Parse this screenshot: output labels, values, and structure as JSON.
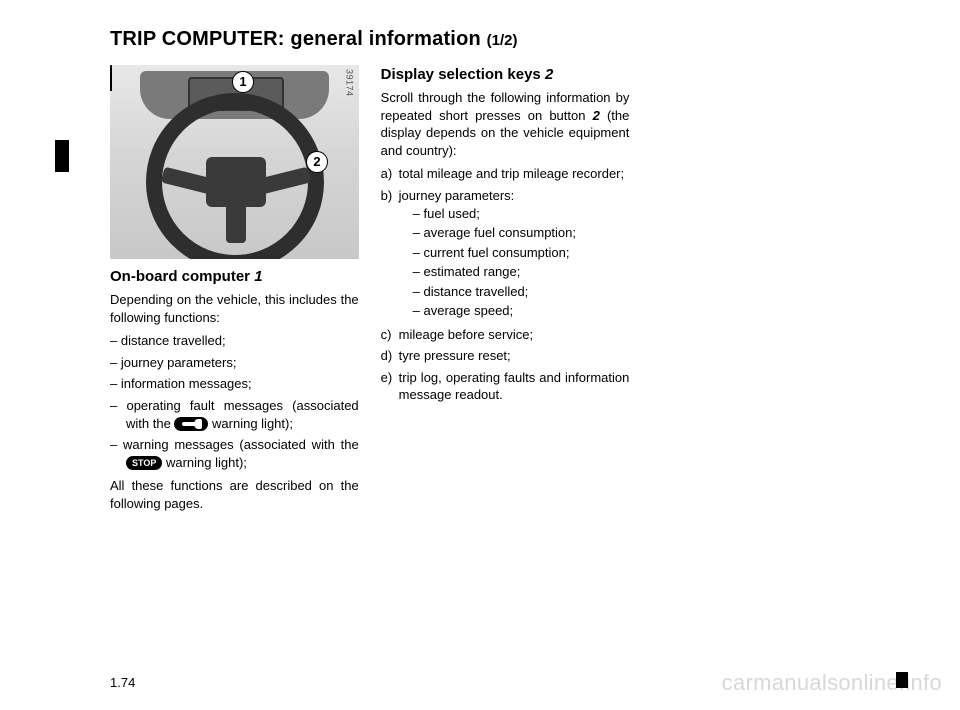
{
  "title": {
    "main": "TRIP COMPUTER:  general information ",
    "part": "(1/2)"
  },
  "figure": {
    "image_id": "39174",
    "callouts": {
      "one": "1",
      "two": "2"
    }
  },
  "left": {
    "heading": "On-board computer",
    "heading_ref": "1",
    "intro": "Depending on the vehicle, this includes the following functions:",
    "items": [
      "distance travelled;",
      "journey parameters;",
      "information messages;"
    ],
    "item_fault_pre": "operating fault messages (associated with the ",
    "item_fault_post": " warning light);",
    "item_warn_pre": "warning messages (associated with the ",
    "stop_label": "STOP",
    "item_warn_post": " warning light);",
    "outro": "All these functions are described on the following pages."
  },
  "mid": {
    "heading": "Display selection keys",
    "heading_ref": "2",
    "intro_pre": "Scroll through the following information by repeated short presses on button ",
    "intro_ref": "2",
    "intro_post": " (the display depends on the vehicle equipment and country):",
    "a": "total mileage and trip mileage recorder;",
    "b_label": "journey parameters:",
    "b_items": [
      "fuel used;",
      "average fuel consumption;",
      "current fuel consumption;",
      "estimated range;",
      "distance travelled;",
      "average speed;"
    ],
    "c": "mileage before service;",
    "d": "tyre pressure reset;",
    "e": "trip log, operating faults and information message readout."
  },
  "page_number": "1.74",
  "watermark": "carmanualsonline.info",
  "colors": {
    "text": "#000000",
    "background": "#ffffff",
    "watermark": "#d8d8d8"
  }
}
